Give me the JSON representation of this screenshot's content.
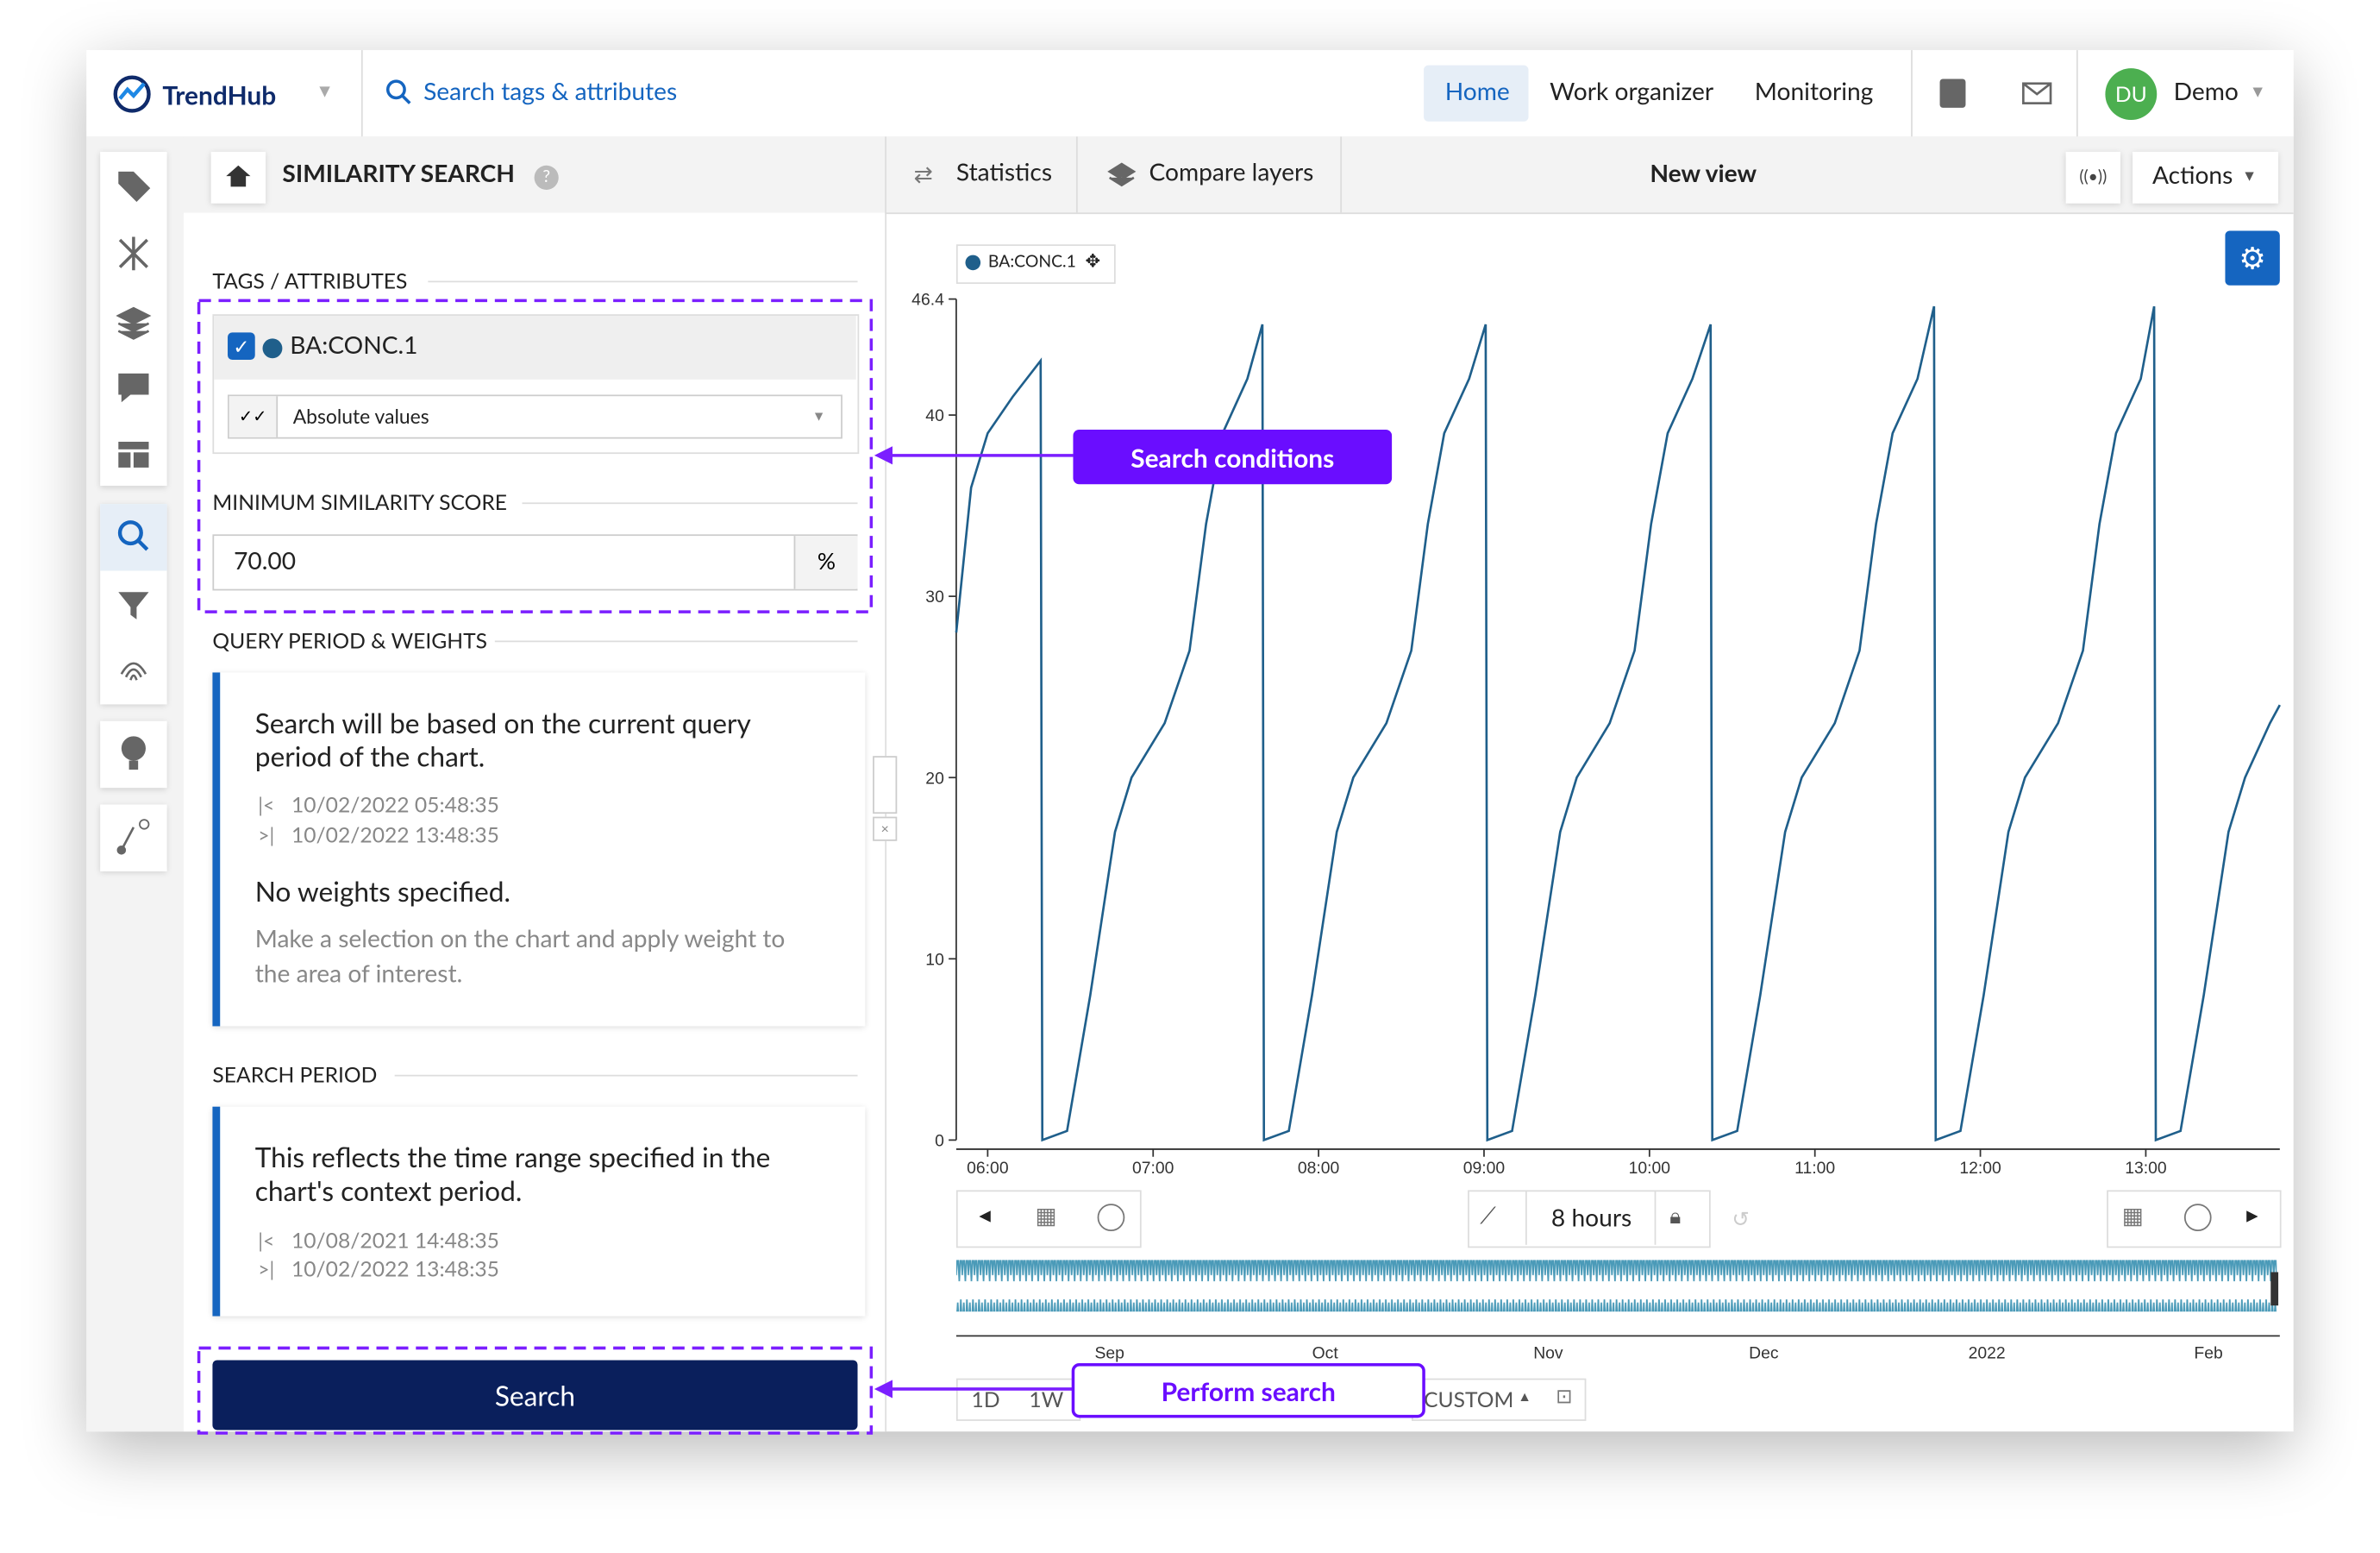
{
  "header": {
    "brand": "TrendHub",
    "search": "Search tags & attributes",
    "nav": [
      "Home",
      "Work organizer",
      "Monitoring"
    ],
    "avatar": "DU",
    "user": "Demo"
  },
  "panel": {
    "title": "SIMILARITY SEARCH",
    "tags_heading": "TAGS / ATTRIBUTES",
    "tag": "BA:CONC.1",
    "mode": "Absolute values",
    "score_heading": "MINIMUM SIMILARITY SCORE",
    "score": "70.00",
    "score_unit": "%",
    "query_heading": "QUERY PERIOD & WEIGHTS",
    "query_text": "Search will be based on the current query period of the chart.",
    "query_start": "10/02/2022 05:48:35",
    "query_end": "10/02/2022 13:48:35",
    "weights_title": "No weights specified.",
    "weights_text": "Make a selection on the chart and apply weight to the area of interest.",
    "search_heading": "SEARCH PERIOD",
    "search_text": "This reflects the time range specified in the chart's context period.",
    "search_start": "10/08/2021 14:48:35",
    "search_end": "10/02/2022 13:48:35",
    "button": "Search"
  },
  "toolbar": {
    "statistics": "Statistics",
    "compare": "Compare layers",
    "view": "New view",
    "actions": "Actions"
  },
  "chart_data": {
    "type": "line",
    "x": [
      5.81,
      5.9,
      6.0,
      6.15,
      6.32,
      6.33,
      6.48,
      6.62,
      6.77,
      6.87,
      7.07,
      7.22,
      7.32,
      7.42,
      7.57,
      7.66,
      7.67,
      7.82,
      7.96,
      8.11,
      8.21,
      8.41,
      8.56,
      8.66,
      8.76,
      8.91,
      9.01,
      9.02,
      9.17,
      9.31,
      9.46,
      9.56,
      9.76,
      9.91,
      10.01,
      10.11,
      10.26,
      10.37,
      10.38,
      10.53,
      10.67,
      10.82,
      10.92,
      11.12,
      11.27,
      11.37,
      11.47,
      11.62,
      11.72,
      11.73,
      11.88,
      12.02,
      12.17,
      12.27,
      12.47,
      12.62,
      12.72,
      12.82,
      12.97,
      13.05,
      13.06,
      13.21,
      13.35,
      13.5,
      13.6,
      13.75,
      13.81
    ],
    "series": [
      {
        "name": "BA:CONC.1",
        "color": "#1f5f8b",
        "values": [
          28,
          36,
          39,
          41,
          43,
          0,
          0.5,
          8,
          17,
          20,
          23,
          27,
          34,
          39,
          42,
          45,
          0,
          0.5,
          8,
          17,
          20,
          23,
          27,
          34,
          39,
          42,
          45,
          0,
          0.5,
          8,
          17,
          20,
          23,
          27,
          34,
          39,
          42,
          45,
          0,
          0.5,
          8,
          17,
          20,
          23,
          27,
          34,
          39,
          42,
          46,
          0,
          0.5,
          8,
          17,
          20,
          23,
          27,
          34,
          39,
          42,
          46,
          0,
          0.5,
          8,
          17,
          20,
          23,
          24
        ]
      }
    ],
    "xlim": [
      5.81,
      13.81
    ],
    "ylim": [
      0,
      46.4
    ],
    "yticks": [
      0,
      10,
      20,
      30,
      40,
      46.4
    ],
    "xticks": [
      {
        "value": 6,
        "label": "06:00"
      },
      {
        "value": 7,
        "label": "07:00"
      },
      {
        "value": 8,
        "label": "08:00"
      },
      {
        "value": 9,
        "label": "09:00"
      },
      {
        "value": 10,
        "label": "10:00"
      },
      {
        "value": 11,
        "label": "11:00"
      },
      {
        "value": 12,
        "label": "12:00"
      },
      {
        "value": 13,
        "label": "13:00"
      }
    ]
  },
  "controls": {
    "range": "8 hours",
    "presets": [
      "1D",
      "1W"
    ],
    "custom": "CUSTOM"
  },
  "navigator": {
    "labels": [
      "Sep",
      "Oct",
      "Nov",
      "Dec",
      "2022",
      "Feb"
    ]
  },
  "annotations": [
    "Search conditions",
    "Perform search"
  ]
}
